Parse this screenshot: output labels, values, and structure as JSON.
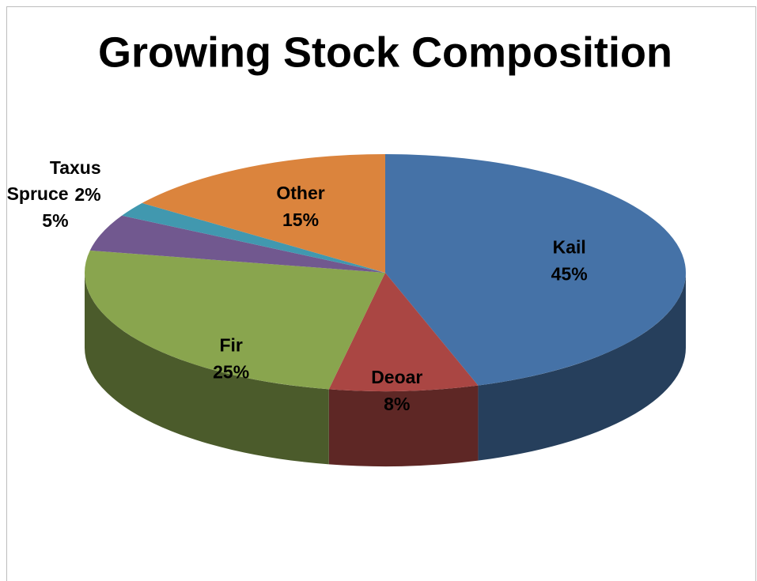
{
  "chart_data": {
    "type": "pie",
    "title": "Growing Stock Composition",
    "categories": [
      "Kail",
      "Deoar",
      "Fir",
      "Spruce",
      "Taxus",
      "Other"
    ],
    "values": [
      45,
      8,
      25,
      5,
      2,
      15
    ],
    "value_labels": [
      "45%",
      "8%",
      "25%",
      "5%",
      "2%",
      "15%"
    ],
    "colors": [
      "#4572a7",
      "#aa4643",
      "#89a54e",
      "#71588f",
      "#4198af",
      "#db843d"
    ]
  }
}
